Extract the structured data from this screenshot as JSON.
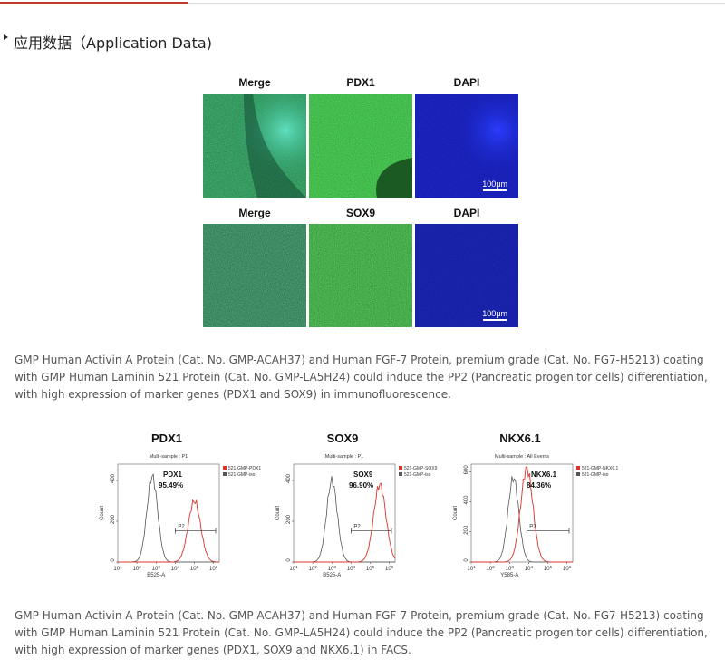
{
  "section": {
    "title": "应用数据（Application Data)"
  },
  "if_rows": [
    {
      "labels": [
        "Merge",
        "PDX1",
        "DAPI"
      ],
      "scale": "100μm"
    },
    {
      "labels": [
        "Merge",
        "SOX9",
        "DAPI"
      ],
      "scale": "100μm"
    }
  ],
  "captions": [
    "GMP Human Activin A Protein (Cat. No. GMP-ACAH37) and Human FGF-7 Protein, premium grade (Cat. No. FG7-H5213) coating with GMP Human Laminin 521 Protein (Cat. No. GMP-LA5H24) could induce the PP2 (Pancreatic progenitor cells) differentiation, with high expression of marker genes (PDX1 and SOX9) in immunofluorescence.",
    "GMP Human Activin A Protein (Cat. No. GMP-ACAH37) and Human FGF-7 Protein, premium grade (Cat. No. FG7-H5213) coating with GMP Human Laminin 521 Protein (Cat. No. GMP-LA5H24) could induce the PP2 (Pancreatic progenitor cells) differentiation, with high expression of marker genes (PDX1, SOX9 and NKX6.1) in FACS."
  ],
  "colors": {
    "sample": "#d9342b",
    "iso": "#555555",
    "accent": "#c0392b"
  },
  "chart_data": [
    {
      "type": "line",
      "title": "PDX1",
      "subtitle": "Multi-sample : P1",
      "xlabel": "B525-A",
      "ylabel": "Count",
      "gate": "P2",
      "xscale": "log",
      "xticks": [
        "10^1",
        "10^2",
        "10^3",
        "10^4",
        "10^5",
        "10^6"
      ],
      "yticks": [
        "0",
        "200",
        "400"
      ],
      "ylim": [
        0,
        480
      ],
      "legend": [
        "521-GMP-PDX1",
        "521-GMP-iso"
      ],
      "annotation": {
        "label": "PDX1",
        "value": "95.49%"
      },
      "series": [
        {
          "name": "521-GMP-PDX1",
          "peak_log10": 5.0,
          "peak_count": 300
        },
        {
          "name": "521-GMP-iso",
          "peak_log10": 2.8,
          "peak_count": 420
        }
      ]
    },
    {
      "type": "line",
      "title": "SOX9",
      "subtitle": "Multi-sample : P1",
      "xlabel": "B525-A",
      "ylabel": "Count",
      "gate": "P2",
      "xscale": "log",
      "xticks": [
        "10^1",
        "10^2",
        "10^3",
        "10^4",
        "10^5",
        "10^6"
      ],
      "yticks": [
        "0",
        "200",
        "400"
      ],
      "ylim": [
        0,
        480
      ],
      "legend": [
        "521-GMP-SOX9",
        "521-GMP-iso"
      ],
      "annotation": {
        "label": "SOX9",
        "value": "96.90%"
      },
      "series": [
        {
          "name": "521-GMP-SOX9",
          "peak_log10": 5.5,
          "peak_count": 380
        },
        {
          "name": "521-GMP-iso",
          "peak_log10": 3.0,
          "peak_count": 400
        }
      ]
    },
    {
      "type": "line",
      "title": "NKX6.1",
      "subtitle": "Multi-sample : All Events",
      "xlabel": "Y585-A",
      "ylabel": "Count",
      "gate": "P2",
      "xscale": "log",
      "xticks": [
        "10^1",
        "10^2",
        "10^3",
        "10^4",
        "10^5",
        "10^6"
      ],
      "yticks": [
        "0",
        "200",
        "400",
        "600"
      ],
      "ylim": [
        0,
        650
      ],
      "legend": [
        "521-GMP-NKX6.1",
        "521-GMP-iso"
      ],
      "annotation": {
        "label": "NKX6.1",
        "value": "84.36%"
      },
      "series": [
        {
          "name": "521-GMP-NKX6.1",
          "peak_log10": 3.9,
          "peak_count": 620
        },
        {
          "name": "521-GMP-iso",
          "peak_log10": 3.2,
          "peak_count": 560
        }
      ]
    }
  ]
}
